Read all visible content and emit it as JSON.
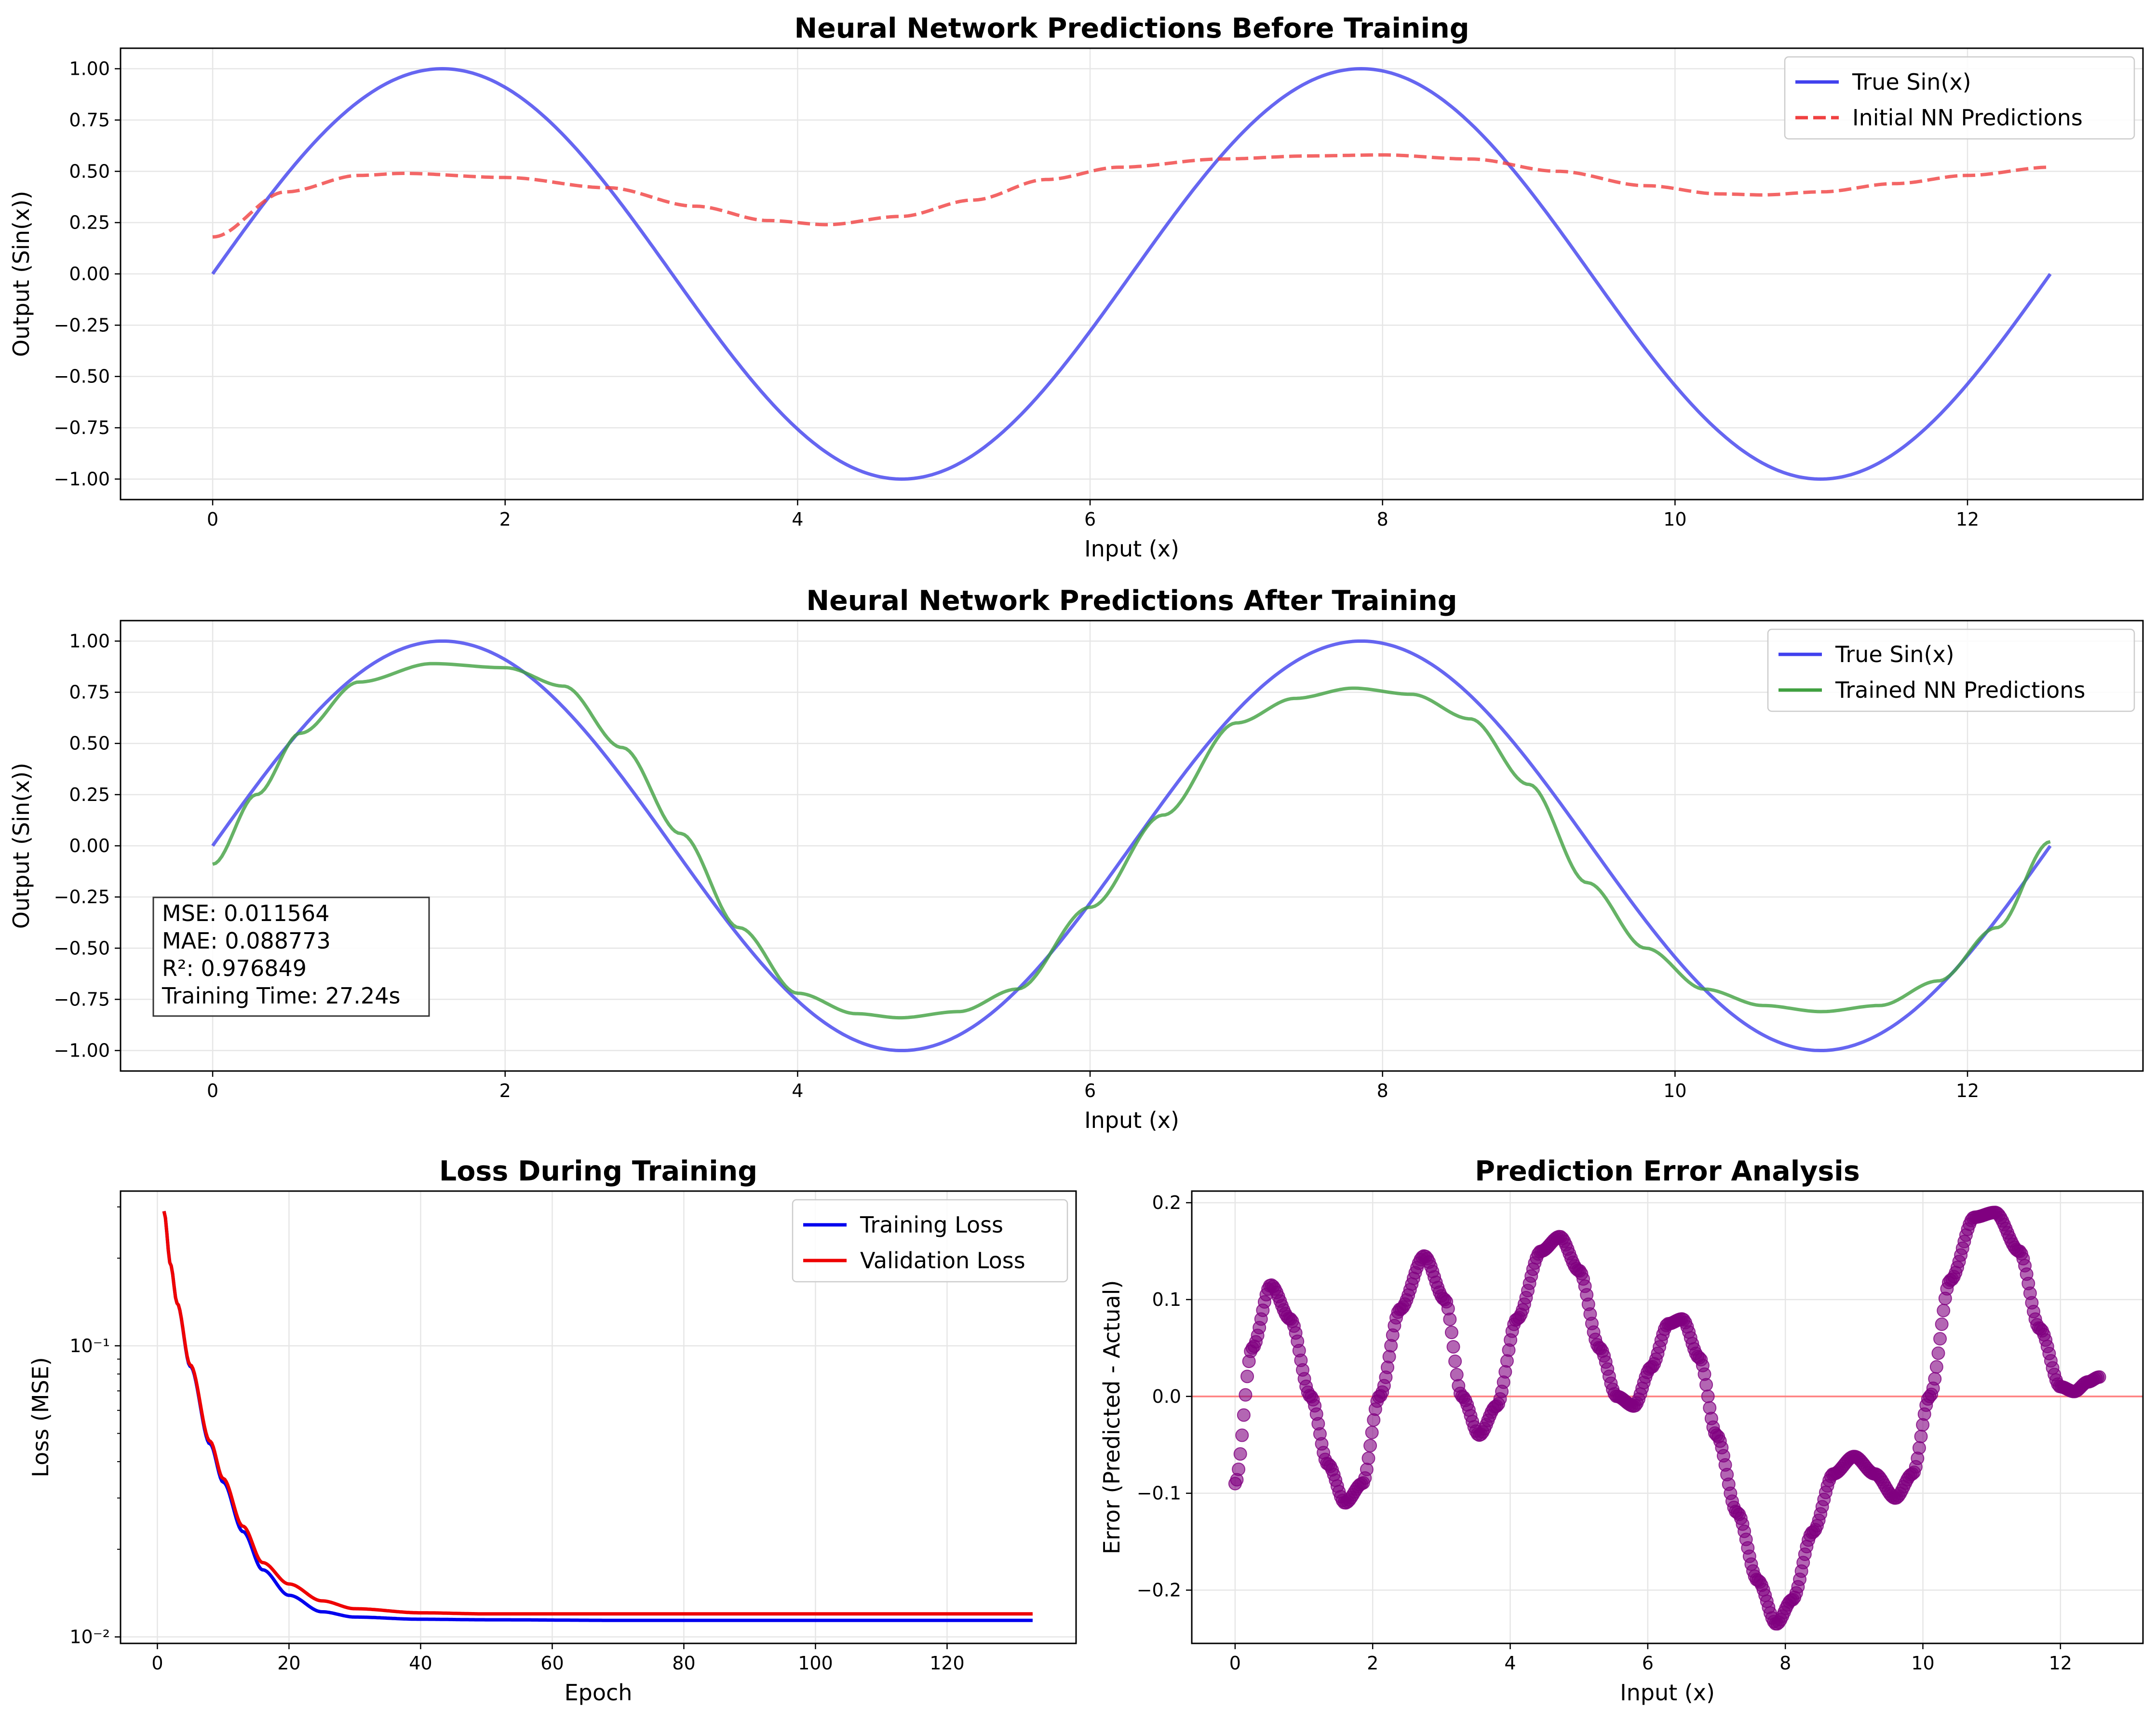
{
  "chart_data": [
    {
      "type": "line",
      "title": "Neural Network Predictions Before Training",
      "xlabel": "Input (x)",
      "ylabel": "Output (Sin(x))",
      "xlim": [
        -0.63,
        13.2
      ],
      "ylim": [
        -1.1,
        1.1
      ],
      "xticks": [
        0,
        2,
        4,
        6,
        8,
        10,
        12
      ],
      "xtick_labels": [
        "0",
        "2",
        "4",
        "6",
        "8",
        "10",
        "12"
      ],
      "yticks": [
        1.0,
        0.75,
        0.5,
        0.25,
        0.0,
        -0.25,
        -0.5,
        -0.75,
        -1.0
      ],
      "ytick_labels": [
        "1.00",
        "0.75",
        "0.50",
        "0.25",
        "0.00",
        "−0.25",
        "−0.50",
        "−0.75",
        "−1.00"
      ],
      "grid": true,
      "legend_position": "top-right",
      "series": [
        {
          "name": "True Sin(x)",
          "color": "#4040ee",
          "style": "solid",
          "function": "sin",
          "x_range": [
            0,
            12.566
          ]
        },
        {
          "name": "Initial NN Predictions",
          "color": "#f04040",
          "style": "dashed",
          "x": [
            0,
            0.5,
            1.0,
            1.3,
            2.0,
            2.7,
            3.3,
            3.8,
            4.2,
            4.7,
            5.2,
            5.7,
            6.2,
            6.9,
            7.5,
            8.0,
            8.6,
            9.2,
            9.8,
            10.3,
            10.6,
            11.0,
            11.5,
            12.0,
            12.566
          ],
          "y": [
            0.18,
            0.4,
            0.48,
            0.49,
            0.47,
            0.42,
            0.33,
            0.26,
            0.24,
            0.28,
            0.36,
            0.46,
            0.52,
            0.56,
            0.575,
            0.58,
            0.56,
            0.5,
            0.43,
            0.39,
            0.385,
            0.4,
            0.44,
            0.48,
            0.52
          ]
        }
      ]
    },
    {
      "type": "line",
      "title": "Neural Network Predictions After Training",
      "xlabel": "Input (x)",
      "ylabel": "Output (Sin(x))",
      "xlim": [
        -0.63,
        13.2
      ],
      "ylim": [
        -1.1,
        1.1
      ],
      "xticks": [
        0,
        2,
        4,
        6,
        8,
        10,
        12
      ],
      "xtick_labels": [
        "0",
        "2",
        "4",
        "6",
        "8",
        "10",
        "12"
      ],
      "yticks": [
        1.0,
        0.75,
        0.5,
        0.25,
        0.0,
        -0.25,
        -0.5,
        -0.75,
        -1.0
      ],
      "ytick_labels": [
        "1.00",
        "0.75",
        "0.50",
        "0.25",
        "0.00",
        "−0.25",
        "−0.50",
        "−0.75",
        "−1.00"
      ],
      "grid": true,
      "legend_position": "top-right",
      "annotation": [
        "MSE: 0.011564",
        "MAE: 0.088773",
        "R²: 0.976849",
        "Training Time: 27.24s"
      ],
      "series": [
        {
          "name": "True Sin(x)",
          "color": "#4040ee",
          "style": "solid",
          "function": "sin",
          "x_range": [
            0,
            12.566
          ]
        },
        {
          "name": "Trained NN Predictions",
          "color": "#40a040",
          "style": "solid",
          "x": [
            0,
            0.3,
            0.6,
            1.0,
            1.5,
            2.0,
            2.4,
            2.8,
            3.2,
            3.6,
            4.0,
            4.4,
            4.7,
            5.1,
            5.5,
            6.0,
            6.5,
            7.0,
            7.4,
            7.8,
            8.2,
            8.6,
            9.0,
            9.4,
            9.8,
            10.2,
            10.6,
            11.0,
            11.4,
            11.8,
            12.2,
            12.566
          ],
          "y": [
            -0.09,
            0.25,
            0.55,
            0.8,
            0.89,
            0.87,
            0.78,
            0.48,
            0.06,
            -0.4,
            -0.72,
            -0.82,
            -0.84,
            -0.81,
            -0.7,
            -0.3,
            0.15,
            0.6,
            0.72,
            0.77,
            0.74,
            0.62,
            0.3,
            -0.18,
            -0.5,
            -0.7,
            -0.78,
            -0.81,
            -0.78,
            -0.66,
            -0.4,
            0.02
          ]
        }
      ]
    },
    {
      "type": "line",
      "title": "Loss During Training",
      "xlabel": "Epoch",
      "ylabel": "Loss (MSE)",
      "xlim": [
        -5.6,
        139.6
      ],
      "ylim": [
        0.0095,
        0.34
      ],
      "yscale": "log",
      "xticks": [
        0,
        20,
        40,
        60,
        80,
        100,
        120
      ],
      "xtick_labels": [
        "0",
        "20",
        "40",
        "60",
        "80",
        "100",
        "120"
      ],
      "yticks": [
        0.01,
        0.1
      ],
      "ytick_labels": [
        "10⁻²",
        "10⁻¹"
      ],
      "grid": true,
      "legend_position": "top-right",
      "series": [
        {
          "name": "Training Loss",
          "color": "#0000ee",
          "x": [
            1,
            2,
            3,
            5,
            8,
            10,
            13,
            16,
            20,
            25,
            30,
            40,
            50,
            70,
            100,
            133
          ],
          "y": [
            0.29,
            0.19,
            0.14,
            0.085,
            0.046,
            0.034,
            0.023,
            0.017,
            0.0139,
            0.0122,
            0.0117,
            0.0115,
            0.01145,
            0.0114,
            0.0114,
            0.0114
          ]
        },
        {
          "name": "Validation Loss",
          "color": "#ee0000",
          "x": [
            1,
            2,
            3,
            5,
            8,
            10,
            13,
            16,
            20,
            25,
            30,
            40,
            50,
            70,
            100,
            133
          ],
          "y": [
            0.29,
            0.19,
            0.14,
            0.086,
            0.047,
            0.035,
            0.024,
            0.018,
            0.0152,
            0.0133,
            0.0125,
            0.0121,
            0.012,
            0.012,
            0.012,
            0.012
          ]
        }
      ]
    },
    {
      "type": "scatter",
      "title": "Prediction Error Analysis",
      "xlabel": "Input (x)",
      "ylabel": "Error (Predicted - Actual)",
      "xlim": [
        -0.63,
        13.2
      ],
      "ylim": [
        -0.255,
        0.212
      ],
      "xticks": [
        0,
        2,
        4,
        6,
        8,
        10,
        12
      ],
      "xtick_labels": [
        "0",
        "2",
        "4",
        "6",
        "8",
        "10",
        "12"
      ],
      "yticks": [
        0.2,
        0.1,
        0.0,
        -0.1,
        -0.2
      ],
      "ytick_labels": [
        "0.2",
        "0.1",
        "0.0",
        "−0.1",
        "−0.2"
      ],
      "grid": true,
      "reference_line": {
        "y": 0,
        "color": "#ff8080"
      },
      "series": [
        {
          "color": "#800080",
          "x": [
            0,
            0.25,
            0.52,
            0.8,
            1.1,
            1.35,
            1.6,
            1.85,
            2.1,
            2.4,
            2.75,
            3.05,
            3.3,
            3.55,
            3.8,
            4.1,
            4.45,
            4.72,
            5.0,
            5.3,
            5.55,
            5.8,
            6.05,
            6.3,
            6.5,
            6.75,
            7.0,
            7.3,
            7.6,
            7.87,
            8.1,
            8.4,
            8.7,
            9.0,
            9.3,
            9.6,
            9.85,
            10.1,
            10.4,
            10.75,
            11.05,
            11.4,
            11.7,
            12.0,
            12.2,
            12.4,
            12.566
          ],
          "y": [
            -0.09,
            0.05,
            0.115,
            0.08,
            0.0,
            -0.07,
            -0.11,
            -0.09,
            0.0,
            0.09,
            0.145,
            0.1,
            0.0,
            -0.04,
            -0.01,
            0.08,
            0.15,
            0.165,
            0.13,
            0.05,
            0.0,
            -0.01,
            0.03,
            0.075,
            0.08,
            0.04,
            -0.04,
            -0.12,
            -0.19,
            -0.235,
            -0.21,
            -0.14,
            -0.08,
            -0.062,
            -0.08,
            -0.105,
            -0.08,
            0.0,
            0.12,
            0.185,
            0.19,
            0.15,
            0.07,
            0.01,
            0.005,
            0.015,
            0.02
          ]
        }
      ]
    }
  ]
}
